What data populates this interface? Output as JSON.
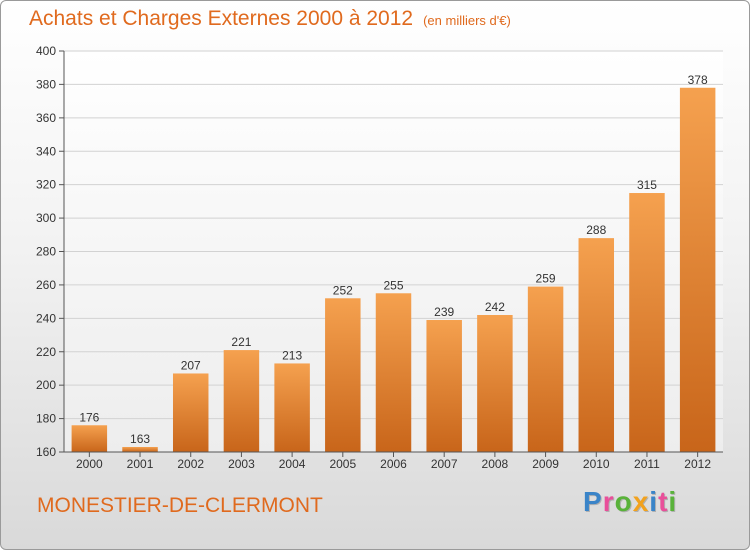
{
  "chart_data": {
    "type": "bar",
    "title": "Achats et Charges Externes 2000 à 2012",
    "subtitle": "(en milliers d'€)",
    "categories": [
      "2000",
      "2001",
      "2002",
      "2003",
      "2004",
      "2005",
      "2006",
      "2007",
      "2008",
      "2009",
      "2010",
      "2011",
      "2012"
    ],
    "values": [
      176,
      163,
      207,
      221,
      213,
      252,
      255,
      239,
      242,
      259,
      288,
      315,
      378
    ],
    "ylim": [
      160,
      400
    ],
    "yticks": [
      160,
      180,
      200,
      220,
      240,
      260,
      280,
      300,
      320,
      340,
      360,
      380,
      400
    ],
    "grid": true,
    "bar_color_top": "#f5a14f",
    "bar_color_bottom": "#c8651a"
  },
  "footer": {
    "commune": "MONESTIER-DE-CLERMONT"
  },
  "logo": {
    "letters": [
      "P",
      "r",
      "o",
      "x",
      "i",
      "t",
      "i"
    ],
    "colors": [
      "#3a84c8",
      "#e94f9a",
      "#59b23a",
      "#f2a21e",
      "#3a84c8",
      "#e94f9a",
      "#59b23a"
    ]
  },
  "colors": {
    "accent": "#e06a1e"
  }
}
